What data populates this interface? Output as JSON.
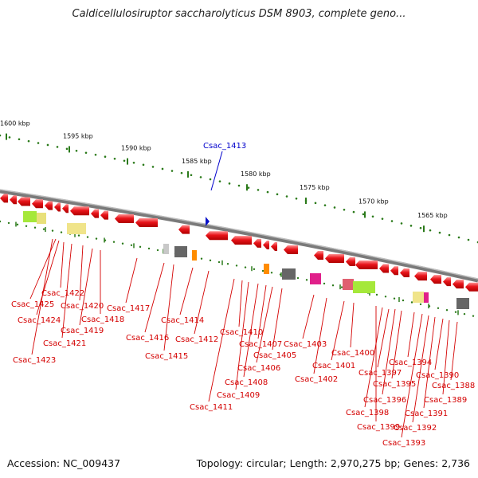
{
  "title": "Caldicellulosiruptor saccharolyticus DSM 8903, complete geno...",
  "footer": {
    "accession": "Accession: NC_009437",
    "summary": "Topology: circular; Length: 2,970,275 bp; Genes: 2,736"
  },
  "colors": {
    "gene_red": "#e8141a",
    "selected_gene": "#0a12c8",
    "label_red": "#d40000",
    "label_blue": "#0000cc",
    "scale_green": "#2b7a1a",
    "backbone": "#7a7a7a"
  },
  "kbp_ticks": [
    "1600 kbp",
    "1595 kbp",
    "1590 kbp",
    "1585 kbp",
    "1580 kbp",
    "1575 kbp",
    "1570 kbp",
    "1565 kbp"
  ],
  "selected_gene": "Csac_1413",
  "gene_labels": [
    "Csac_1425",
    "Csac_1424",
    "Csac_1423",
    "Csac_1422",
    "Csac_1421",
    "Csac_1420",
    "Csac_1419",
    "Csac_1418",
    "Csac_1417",
    "Csac_1416",
    "Csac_1415",
    "Csac_1414",
    "Csac_1412",
    "Csac_1411",
    "Csac_1410",
    "Csac_1409",
    "Csac_1408",
    "Csac_1407",
    "Csac_1406",
    "Csac_1405",
    "Csac_1403",
    "Csac_1402",
    "Csac_1401",
    "Csac_1400",
    "Csac_1399",
    "Csac_1398",
    "Csac_1397",
    "Csac_1396",
    "Csac_1395",
    "Csac_1394",
    "Csac_1393",
    "Csac_1392",
    "Csac_1391",
    "Csac_1390",
    "Csac_1389",
    "Csac_1388"
  ]
}
